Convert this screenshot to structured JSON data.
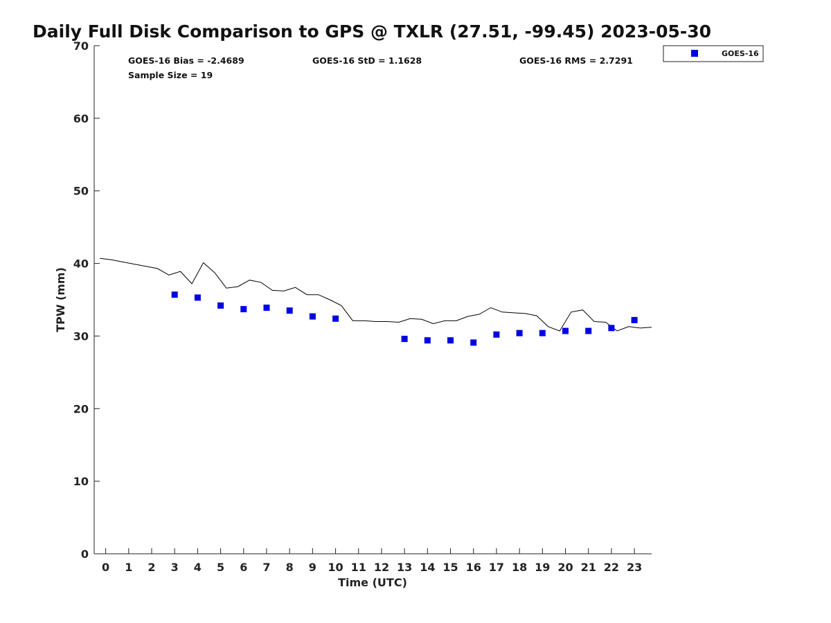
{
  "chart_data": {
    "type": "scatter",
    "title": "Daily Full Disk Comparison to GPS @ TXLR (27.51, -99.45) 2023-05-30",
    "xlabel": "Time (UTC)",
    "ylabel": "TPW (mm)",
    "xlim": [
      -0.5,
      23.75
    ],
    "ylim": [
      0,
      70
    ],
    "x_ticks": [
      0,
      1,
      2,
      3,
      4,
      5,
      6,
      7,
      8,
      9,
      10,
      11,
      12,
      13,
      14,
      15,
      16,
      17,
      18,
      19,
      20,
      21,
      22,
      23
    ],
    "y_ticks": [
      0,
      10,
      20,
      30,
      40,
      50,
      60,
      70
    ],
    "grid": false,
    "legend_position": "top-right",
    "stats": {
      "bias": "GOES-16 Bias = -2.4689",
      "std": "GOES-16 StD = 1.1628",
      "rms": "GOES-16 RMS = 2.7291",
      "sample_size": "Sample Size = 19"
    },
    "series": [
      {
        "name": "GOES-16",
        "marker": "square",
        "color": "#0000e6",
        "x": [
          3,
          4,
          5,
          6,
          7,
          8,
          9,
          10,
          13,
          14,
          15,
          16,
          17,
          18,
          19,
          20,
          21,
          22,
          23
        ],
        "y": [
          35.7,
          35.3,
          34.2,
          33.7,
          33.9,
          33.5,
          32.7,
          32.4,
          29.6,
          29.4,
          29.4,
          29.1,
          30.2,
          30.4,
          30.4,
          30.7,
          30.7,
          31.1,
          32.2
        ]
      },
      {
        "marker": "line",
        "color": "#000000",
        "x": [
          -0.25,
          0.25,
          0.75,
          1.25,
          1.75,
          2.25,
          2.75,
          3.25,
          3.75,
          4.25,
          4.75,
          5.25,
          5.75,
          6.25,
          6.75,
          7.25,
          7.75,
          8.25,
          8.75,
          9.25,
          9.75,
          10.25,
          10.75,
          11.25,
          11.75,
          12.25,
          12.75,
          13.25,
          13.75,
          14.25,
          14.75,
          15.25,
          15.75,
          16.25,
          16.75,
          17.25,
          17.75,
          18.25,
          18.75,
          19.25,
          19.75,
          20.25,
          20.75,
          21.25,
          21.75,
          22.25,
          22.75,
          23.25,
          23.75
        ],
        "y": [
          40.7,
          40.5,
          40.2,
          39.9,
          39.6,
          39.3,
          38.4,
          38.9,
          37.2,
          40.1,
          38.7,
          36.6,
          36.8,
          37.7,
          37.4,
          36.3,
          36.2,
          36.7,
          35.7,
          35.7,
          35.0,
          34.2,
          32.1,
          32.1,
          32.0,
          32.0,
          31.9,
          32.4,
          32.3,
          31.7,
          32.1,
          32.1,
          32.7,
          33.0,
          33.9,
          33.3,
          33.2,
          33.1,
          32.8,
          31.3,
          30.7,
          33.3,
          33.6,
          32.0,
          31.9,
          30.7,
          31.3,
          31.1,
          31.2
        ]
      }
    ]
  }
}
